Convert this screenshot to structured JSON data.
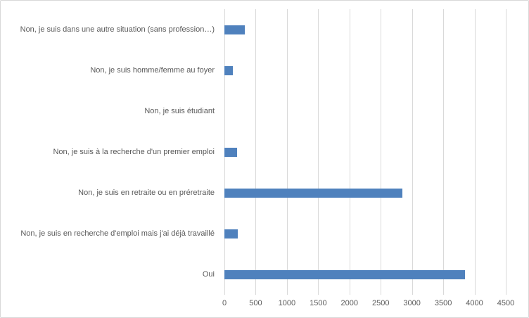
{
  "chart_data": {
    "type": "bar",
    "orientation": "horizontal",
    "title": "",
    "xlabel": "",
    "ylabel": "",
    "categories": [
      "Non, je suis dans une autre situation (sans profession…)",
      "Non, je suis homme/femme au foyer",
      "Non, je suis étudiant",
      "Non, je suis à la recherche d'un premier emploi",
      "Non, je suis en retraite ou en préretraite",
      "Non, je suis en recherche d'emploi mais j'ai déjà travaillé",
      "Oui"
    ],
    "values": [
      330,
      140,
      0,
      200,
      2850,
      215,
      3850
    ],
    "x_ticks": [
      0,
      500,
      1000,
      1500,
      2000,
      2500,
      3000,
      3500,
      4000,
      4500
    ],
    "xlim": [
      0,
      4500
    ],
    "grid": true,
    "legend": "none",
    "bar_color": "#4f81bd",
    "gridline_color": "#d9d9d9",
    "text_color": "#595959",
    "background_color": "#ffffff"
  }
}
